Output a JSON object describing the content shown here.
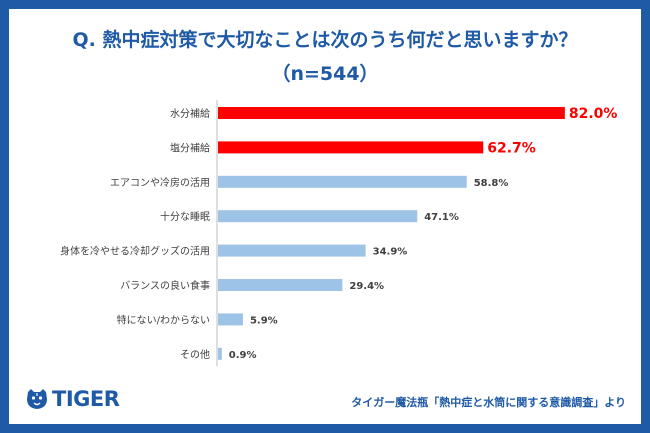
{
  "title": "Q. 熱中症対策で大切なことは次のうち何だと思いますか？",
  "subtitle": "（n=544）",
  "logo": {
    "text": "TIGER",
    "icon": "tiger-head-icon"
  },
  "source": "タイガー魔法瓶「熱中症と水筒に関する意識調査」より",
  "colors": {
    "accent": "#ff0000",
    "bar_default": "#9dc3e6",
    "brand": "#1f5aa6"
  },
  "chart_data": {
    "type": "bar",
    "orientation": "horizontal",
    "title": "Q. 熱中症対策で大切なことは次のうち何だと思いますか？",
    "subtitle": "（n=544）",
    "categories": [
      "水分補給",
      "塩分補給",
      "エアコンや冷房の活用",
      "十分な睡眠",
      "身体を冷やせる冷却グッズの活用",
      "バランスの良い食事",
      "特にない/わからない",
      "その他"
    ],
    "values": [
      82.0,
      62.7,
      58.8,
      47.1,
      34.9,
      29.4,
      5.9,
      0.9
    ],
    "labels": [
      "82.0%",
      "62.7%",
      "58.8%",
      "47.1%",
      "34.9%",
      "29.4%",
      "5.9%",
      "0.9%"
    ],
    "highlight": [
      true,
      true,
      false,
      false,
      false,
      false,
      false,
      false
    ],
    "xlim": [
      0,
      100
    ],
    "unit": "%"
  }
}
